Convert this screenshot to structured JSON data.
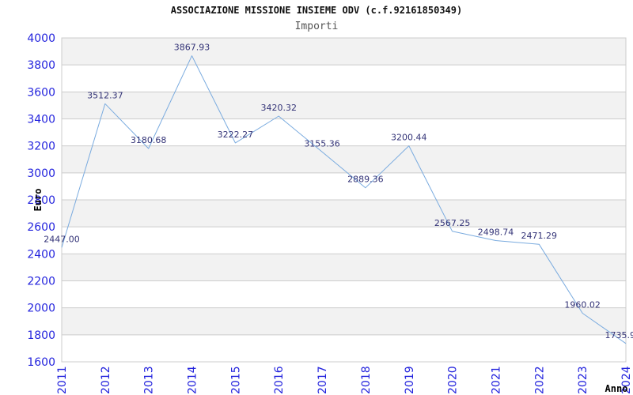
{
  "header": {
    "title": "ASSOCIAZIONE MISSIONE INSIEME ODV (c.f.92161850349)",
    "subtitle": "Importi"
  },
  "chart_data": {
    "type": "line",
    "title": "ASSOCIAZIONE MISSIONE INSIEME ODV (c.f.92161850349)",
    "subtitle": "Importi",
    "xlabel": "Anno",
    "ylabel": "Euro",
    "categories": [
      "2011",
      "2012",
      "2013",
      "2014",
      "2015",
      "2016",
      "2017",
      "2018",
      "2019",
      "2020",
      "2021",
      "2022",
      "2023",
      "2024"
    ],
    "series": [
      {
        "name": "Importi",
        "values": [
          2447.0,
          3512.37,
          3180.68,
          3867.93,
          3222.27,
          3420.32,
          3155.36,
          2889.36,
          3200.44,
          2567.25,
          2498.74,
          2471.29,
          1960.02,
          1735.9
        ]
      }
    ],
    "point_labels": [
      "2447.00",
      "3512.37",
      "3180.68",
      "3867.93",
      "3222.27",
      "3420.32",
      "3155.36",
      "2889.36",
      "3200.44",
      "2567.25",
      "2498.74",
      "2471.29",
      "1960.02",
      "1735.9"
    ],
    "ylim": [
      1600,
      4000
    ],
    "ytick_step": 200,
    "grid": true,
    "alternating_bands": true,
    "legend_position": "none"
  },
  "colors": {
    "line": "#7aabdf",
    "tick_labels": "#2323dd",
    "point_labels": "#333377",
    "band": "#f2f2f2",
    "grid": "#cccccc",
    "plot_border": "#cccccc",
    "title": "#111111",
    "subtitle": "#555555",
    "axis_titles": "#000000",
    "background": "#ffffff"
  }
}
